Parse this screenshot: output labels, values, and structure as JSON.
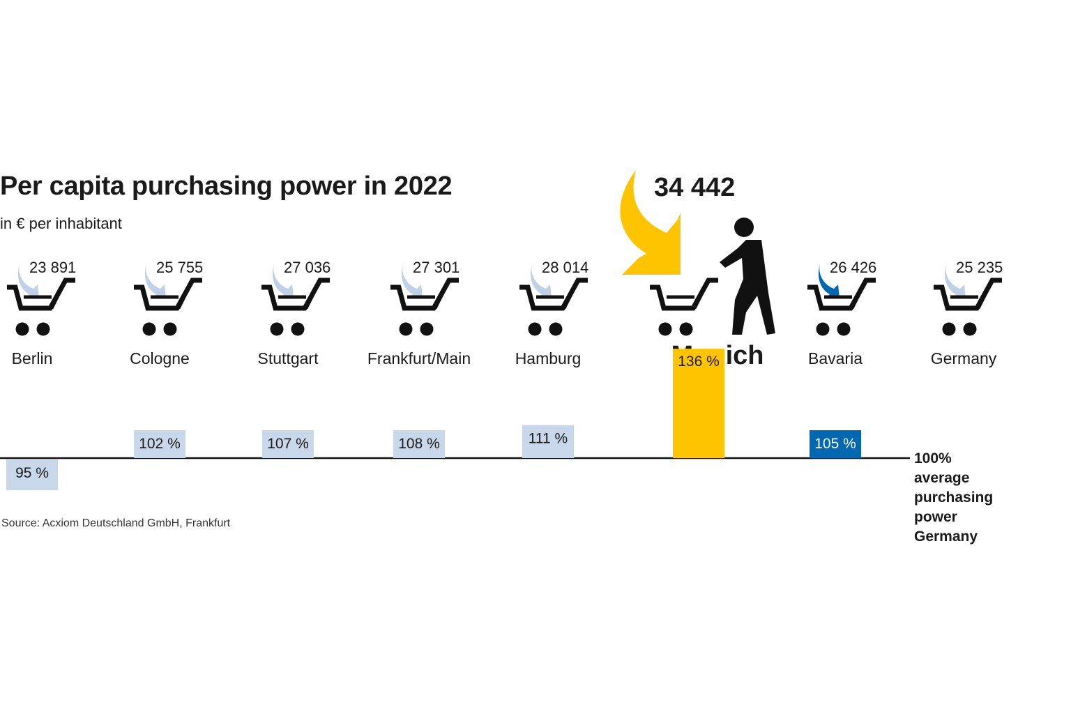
{
  "chart_data": {
    "type": "bar",
    "title": "Per capita purchasing power in 2022",
    "subtitle": "in € per inhabitant",
    "categories": [
      "Berlin",
      "Cologne",
      "Stuttgart",
      "Frankfurt/Main",
      "Hamburg",
      "Munich",
      "Bavaria",
      "Germany"
    ],
    "value_labels": [
      "23 891",
      "25 755",
      "27 036",
      "27 301",
      "28 014",
      "34 442",
      "26 426",
      "25 235"
    ],
    "values": [
      23891,
      25755,
      27036,
      27301,
      28014,
      34442,
      26426,
      25235
    ],
    "index_percent": [
      95,
      102,
      107,
      108,
      111,
      136,
      105,
      null
    ],
    "index_labels": [
      "95 %",
      "102 %",
      "107 %",
      "108 %",
      "111 %",
      "136 %",
      "105 %",
      ""
    ],
    "baseline": 100,
    "reference_label": [
      "100%",
      "average",
      "purchasing",
      "power",
      "Germany"
    ],
    "source": "Source: Acxiom Deutschland GmbH, Frankfurt",
    "colors": {
      "default_bar": "#c9d7ea",
      "munich": "#ffc400",
      "bavaria": "#0067b1",
      "arrow_light": "#c0d0e6",
      "icon": "#111111"
    },
    "icons": [
      "shopping-cart-icon",
      "curved-arrow-icon",
      "walking-person-icon"
    ]
  }
}
